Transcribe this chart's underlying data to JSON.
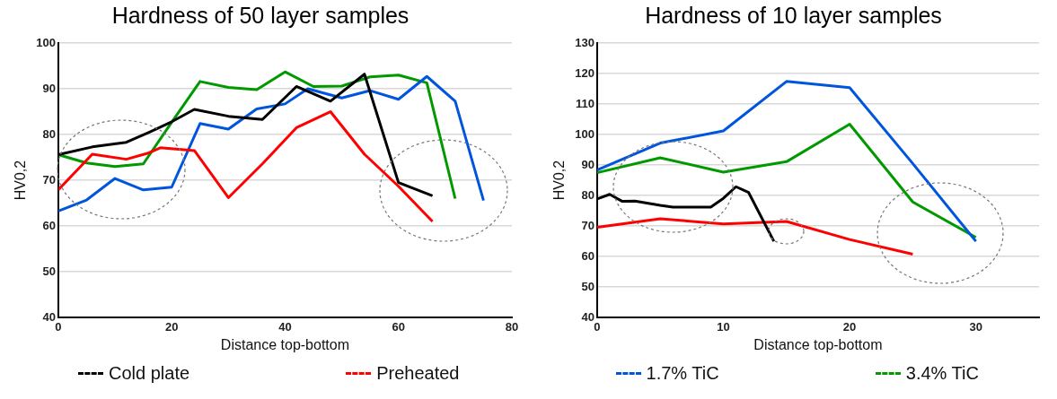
{
  "chart_data": [
    {
      "type": "line",
      "title": "Hardness of 50 layer samples",
      "xlabel": "Distance top-bottom",
      "ylabel": "HV0,2",
      "xlim": [
        0,
        80
      ],
      "xticks": [
        0,
        20,
        40,
        60,
        80
      ],
      "ylim": [
        40,
        100
      ],
      "yticks": [
        40,
        50,
        60,
        70,
        80,
        90,
        100
      ],
      "grid": "y",
      "legend": "bottom",
      "marker": "none",
      "line_style": "solid",
      "series": [
        {
          "name": "Cold plate",
          "color": "#000000",
          "x": [
            0,
            6,
            12,
            16,
            20,
            24,
            30,
            36,
            42,
            48,
            54,
            60,
            66
          ],
          "values": [
            75.6,
            77.3,
            78.3,
            80.5,
            82.8,
            85.5,
            84,
            83.3,
            90.5,
            87.3,
            93.2,
            69.5,
            66.6
          ]
        },
        {
          "name": "Preheated",
          "color": "#ff0000",
          "x": [
            0,
            6,
            12,
            16,
            18,
            24,
            30,
            36,
            42,
            48,
            54,
            60,
            66
          ],
          "values": [
            67.9,
            75.7,
            74.6,
            76,
            77.1,
            76.5,
            66.2,
            73.6,
            81.5,
            85,
            75.7,
            68.7,
            61
          ]
        },
        {
          "name": "1.7% TiC",
          "color": "#0055dd",
          "x": [
            0,
            5,
            10,
            15,
            20,
            25,
            30,
            35,
            40,
            44,
            50,
            55,
            60,
            65,
            70,
            75
          ],
          "values": [
            63.3,
            65.7,
            70.4,
            67.9,
            68.5,
            82.4,
            81.2,
            85.6,
            86.7,
            90,
            88,
            89.6,
            87.7,
            92.7,
            87.3,
            65.6
          ]
        },
        {
          "name": "3.4% TiC",
          "color": "#009900",
          "x": [
            0,
            5,
            10,
            15,
            20,
            25,
            30,
            35,
            40,
            45,
            50,
            55,
            60,
            65,
            70
          ],
          "values": [
            75.6,
            73.8,
            73,
            73.6,
            82.7,
            91.6,
            90.3,
            89.8,
            93.7,
            90.5,
            90.6,
            92.6,
            93,
            91.3,
            66
          ]
        }
      ]
    },
    {
      "type": "line",
      "title": "Hardness of 10 layer samples",
      "xlabel": "Distance top-bottom",
      "ylabel": "HV0,2",
      "xlim": [
        0,
        35
      ],
      "xticks": [
        0,
        10,
        20,
        30
      ],
      "ylim": [
        40,
        130
      ],
      "yticks": [
        40,
        50,
        60,
        70,
        80,
        90,
        100,
        110,
        120,
        130
      ],
      "grid": "y",
      "marker": "none",
      "line_style": "solid",
      "series": [
        {
          "color": "#000000",
          "x": [
            0,
            1,
            2,
            3,
            5,
            6,
            9,
            10,
            11,
            12,
            14
          ],
          "values": [
            78.9,
            80.4,
            78.1,
            78.2,
            76.8,
            76.2,
            76.2,
            79.1,
            82.9,
            81,
            65
          ]
        },
        {
          "color": "#ff0000",
          "x": [
            0,
            5,
            10,
            15,
            20,
            25
          ],
          "values": [
            69.6,
            72.4,
            70.7,
            71.5,
            65.6,
            60.8
          ]
        },
        {
          "color": "#0055dd",
          "x": [
            0,
            5,
            10,
            15,
            20,
            25,
            30
          ],
          "values": [
            88.4,
            97.2,
            101.2,
            117.4,
            115.4,
            90.5,
            65
          ]
        },
        {
          "color": "#009900",
          "x": [
            0,
            5,
            10,
            15,
            20,
            25,
            30
          ],
          "values": [
            87.5,
            92.4,
            87.7,
            91.1,
            103.4,
            77.9,
            66.3
          ]
        }
      ]
    }
  ]
}
